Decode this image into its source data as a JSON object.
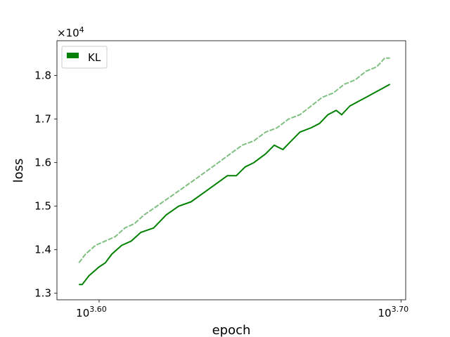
{
  "chart_data": {
    "type": "line",
    "title": "",
    "xlabel": "epoch",
    "ylabel": "loss",
    "x_scale": "log",
    "x_tick_labels": [
      {
        "base": "10",
        "exp": "3.60",
        "value": 3981
      },
      {
        "base": "10",
        "exp": "3.70",
        "value": 5012
      }
    ],
    "xlim": [
      3855,
      5030
    ],
    "y_offset_label": {
      "base": "×10",
      "exp": "4"
    },
    "y_ticks": [
      "1.3",
      "1.4",
      "1.5",
      "1.6",
      "1.7",
      "1.8"
    ],
    "ylim": [
      1.285,
      1.88
    ],
    "grid": false,
    "legend": {
      "position": "top-left",
      "entries": [
        "KL"
      ]
    },
    "series": [
      {
        "name": "KL",
        "color": "#008000",
        "x": [
          3920,
          3930,
          3950,
          3980,
          4000,
          4020,
          4050,
          4080,
          4110,
          4150,
          4190,
          4230,
          4270,
          4310,
          4350,
          4390,
          4420,
          4450,
          4480,
          4520,
          4550,
          4580,
          4610,
          4640,
          4680,
          4710,
          4740,
          4770,
          4790,
          4820,
          4850,
          4880,
          4910,
          4940,
          4970
        ],
        "y": [
          1.32,
          1.32,
          1.34,
          1.36,
          1.37,
          1.39,
          1.41,
          1.42,
          1.44,
          1.45,
          1.48,
          1.5,
          1.51,
          1.53,
          1.55,
          1.57,
          1.57,
          1.59,
          1.6,
          1.62,
          1.64,
          1.63,
          1.65,
          1.67,
          1.68,
          1.69,
          1.71,
          1.72,
          1.71,
          1.73,
          1.74,
          1.75,
          1.76,
          1.77,
          1.78
        ]
      },
      {
        "name": "",
        "color": "#7fbf7f",
        "style": "dashed",
        "x": [
          3920,
          3940,
          3970,
          4000,
          4030,
          4060,
          4090,
          4120,
          4160,
          4200,
          4240,
          4280,
          4320,
          4360,
          4400,
          4440,
          4480,
          4520,
          4560,
          4600,
          4640,
          4680,
          4720,
          4760,
          4800,
          4840,
          4880,
          4920,
          4950,
          4970
        ],
        "y": [
          1.37,
          1.39,
          1.41,
          1.42,
          1.43,
          1.45,
          1.46,
          1.48,
          1.5,
          1.52,
          1.54,
          1.56,
          1.58,
          1.6,
          1.62,
          1.64,
          1.65,
          1.67,
          1.68,
          1.7,
          1.71,
          1.73,
          1.75,
          1.76,
          1.78,
          1.79,
          1.81,
          1.82,
          1.84,
          1.84
        ]
      }
    ]
  }
}
